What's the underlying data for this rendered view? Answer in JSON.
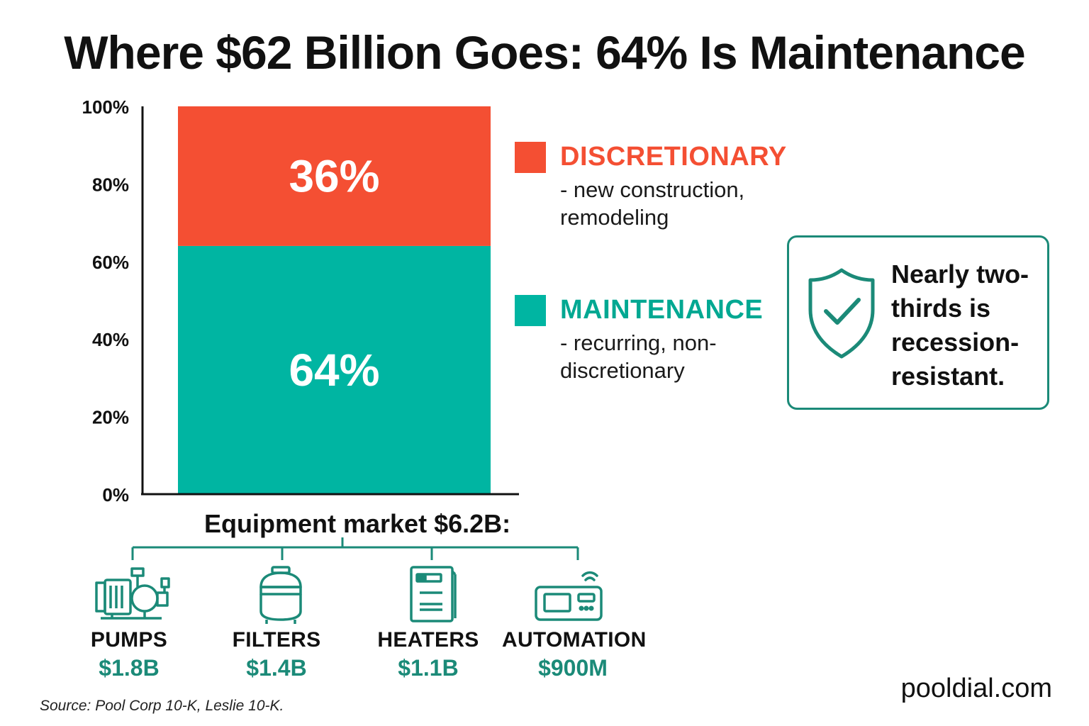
{
  "title": "Where $62 Billion Goes: 64% Is Maintenance",
  "colors": {
    "discretionary": "#f44f33",
    "maintenance": "#00b5a2",
    "accent_dark": "#1b8a78",
    "axis": "#111111"
  },
  "chart_data": {
    "type": "bar",
    "stacked": true,
    "categories": [
      ""
    ],
    "series": [
      {
        "name": "MAINTENANCE",
        "values": [
          64
        ],
        "label": "64%"
      },
      {
        "name": "DISCRETIONARY",
        "values": [
          36
        ],
        "label": "36%"
      }
    ],
    "ylim": [
      0,
      100
    ],
    "yticks": [
      "0%",
      "20%",
      "40%",
      "60%",
      "80%",
      "100%"
    ],
    "ytick_values": [
      0,
      20,
      40,
      60,
      80,
      100
    ],
    "grid": false,
    "legend_placement": "right"
  },
  "legend": {
    "discretionary": {
      "title": "DISCRETIONARY",
      "desc": "- new construction, remodeling"
    },
    "maintenance": {
      "title": "MAINTENANCE",
      "desc": "- recurring, non-discretionary"
    }
  },
  "callout": {
    "icon": "shield-check-icon",
    "text": "Nearly two-thirds is recession-resistant."
  },
  "equipment": {
    "title": "Equipment market $6.2B:",
    "items": [
      {
        "name": "PUMPS",
        "value": "$1.8B",
        "icon": "pump-icon"
      },
      {
        "name": "FILTERS",
        "value": "$1.4B",
        "icon": "filter-icon"
      },
      {
        "name": "HEATERS",
        "value": "$1.1B",
        "icon": "heater-icon"
      },
      {
        "name": "AUTOMATION",
        "value": "$900M",
        "icon": "automation-icon"
      }
    ]
  },
  "source": "Source: Pool Corp 10-K, Leslie 10-K.",
  "site": "pooldial.com"
}
